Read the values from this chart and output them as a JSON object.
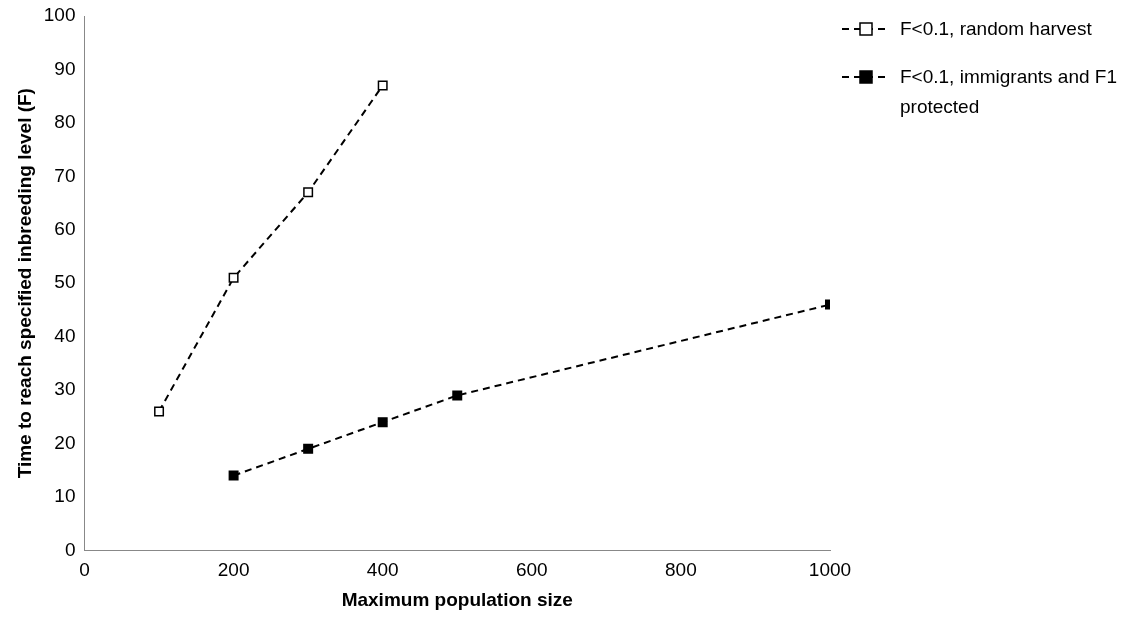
{
  "chart_data": {
    "type": "line",
    "xlabel": "Maximum population size",
    "ylabel": "Time to reach specified inbreeding level (F)",
    "xlim": [
      0,
      1000
    ],
    "xticks": [
      0,
      200,
      400,
      600,
      800,
      1000
    ],
    "ylim": [
      0,
      100
    ],
    "yticks": [
      0,
      10,
      20,
      30,
      40,
      50,
      60,
      70,
      80,
      90,
      100
    ],
    "grid": false,
    "legend": "top right",
    "marker": "square",
    "line_style": "dashed",
    "series": [
      {
        "name": "F<0.1, random harvest",
        "color": "#000000",
        "x": [
          100,
          200,
          300,
          400
        ],
        "values": [
          26,
          51,
          67,
          87
        ]
      },
      {
        "name": "F<0.1, immigrants and F1 protected",
        "color": "#000000",
        "x": [
          200,
          300,
          400,
          500,
          1000
        ],
        "values": [
          14,
          19,
          24,
          29,
          46
        ]
      }
    ]
  }
}
